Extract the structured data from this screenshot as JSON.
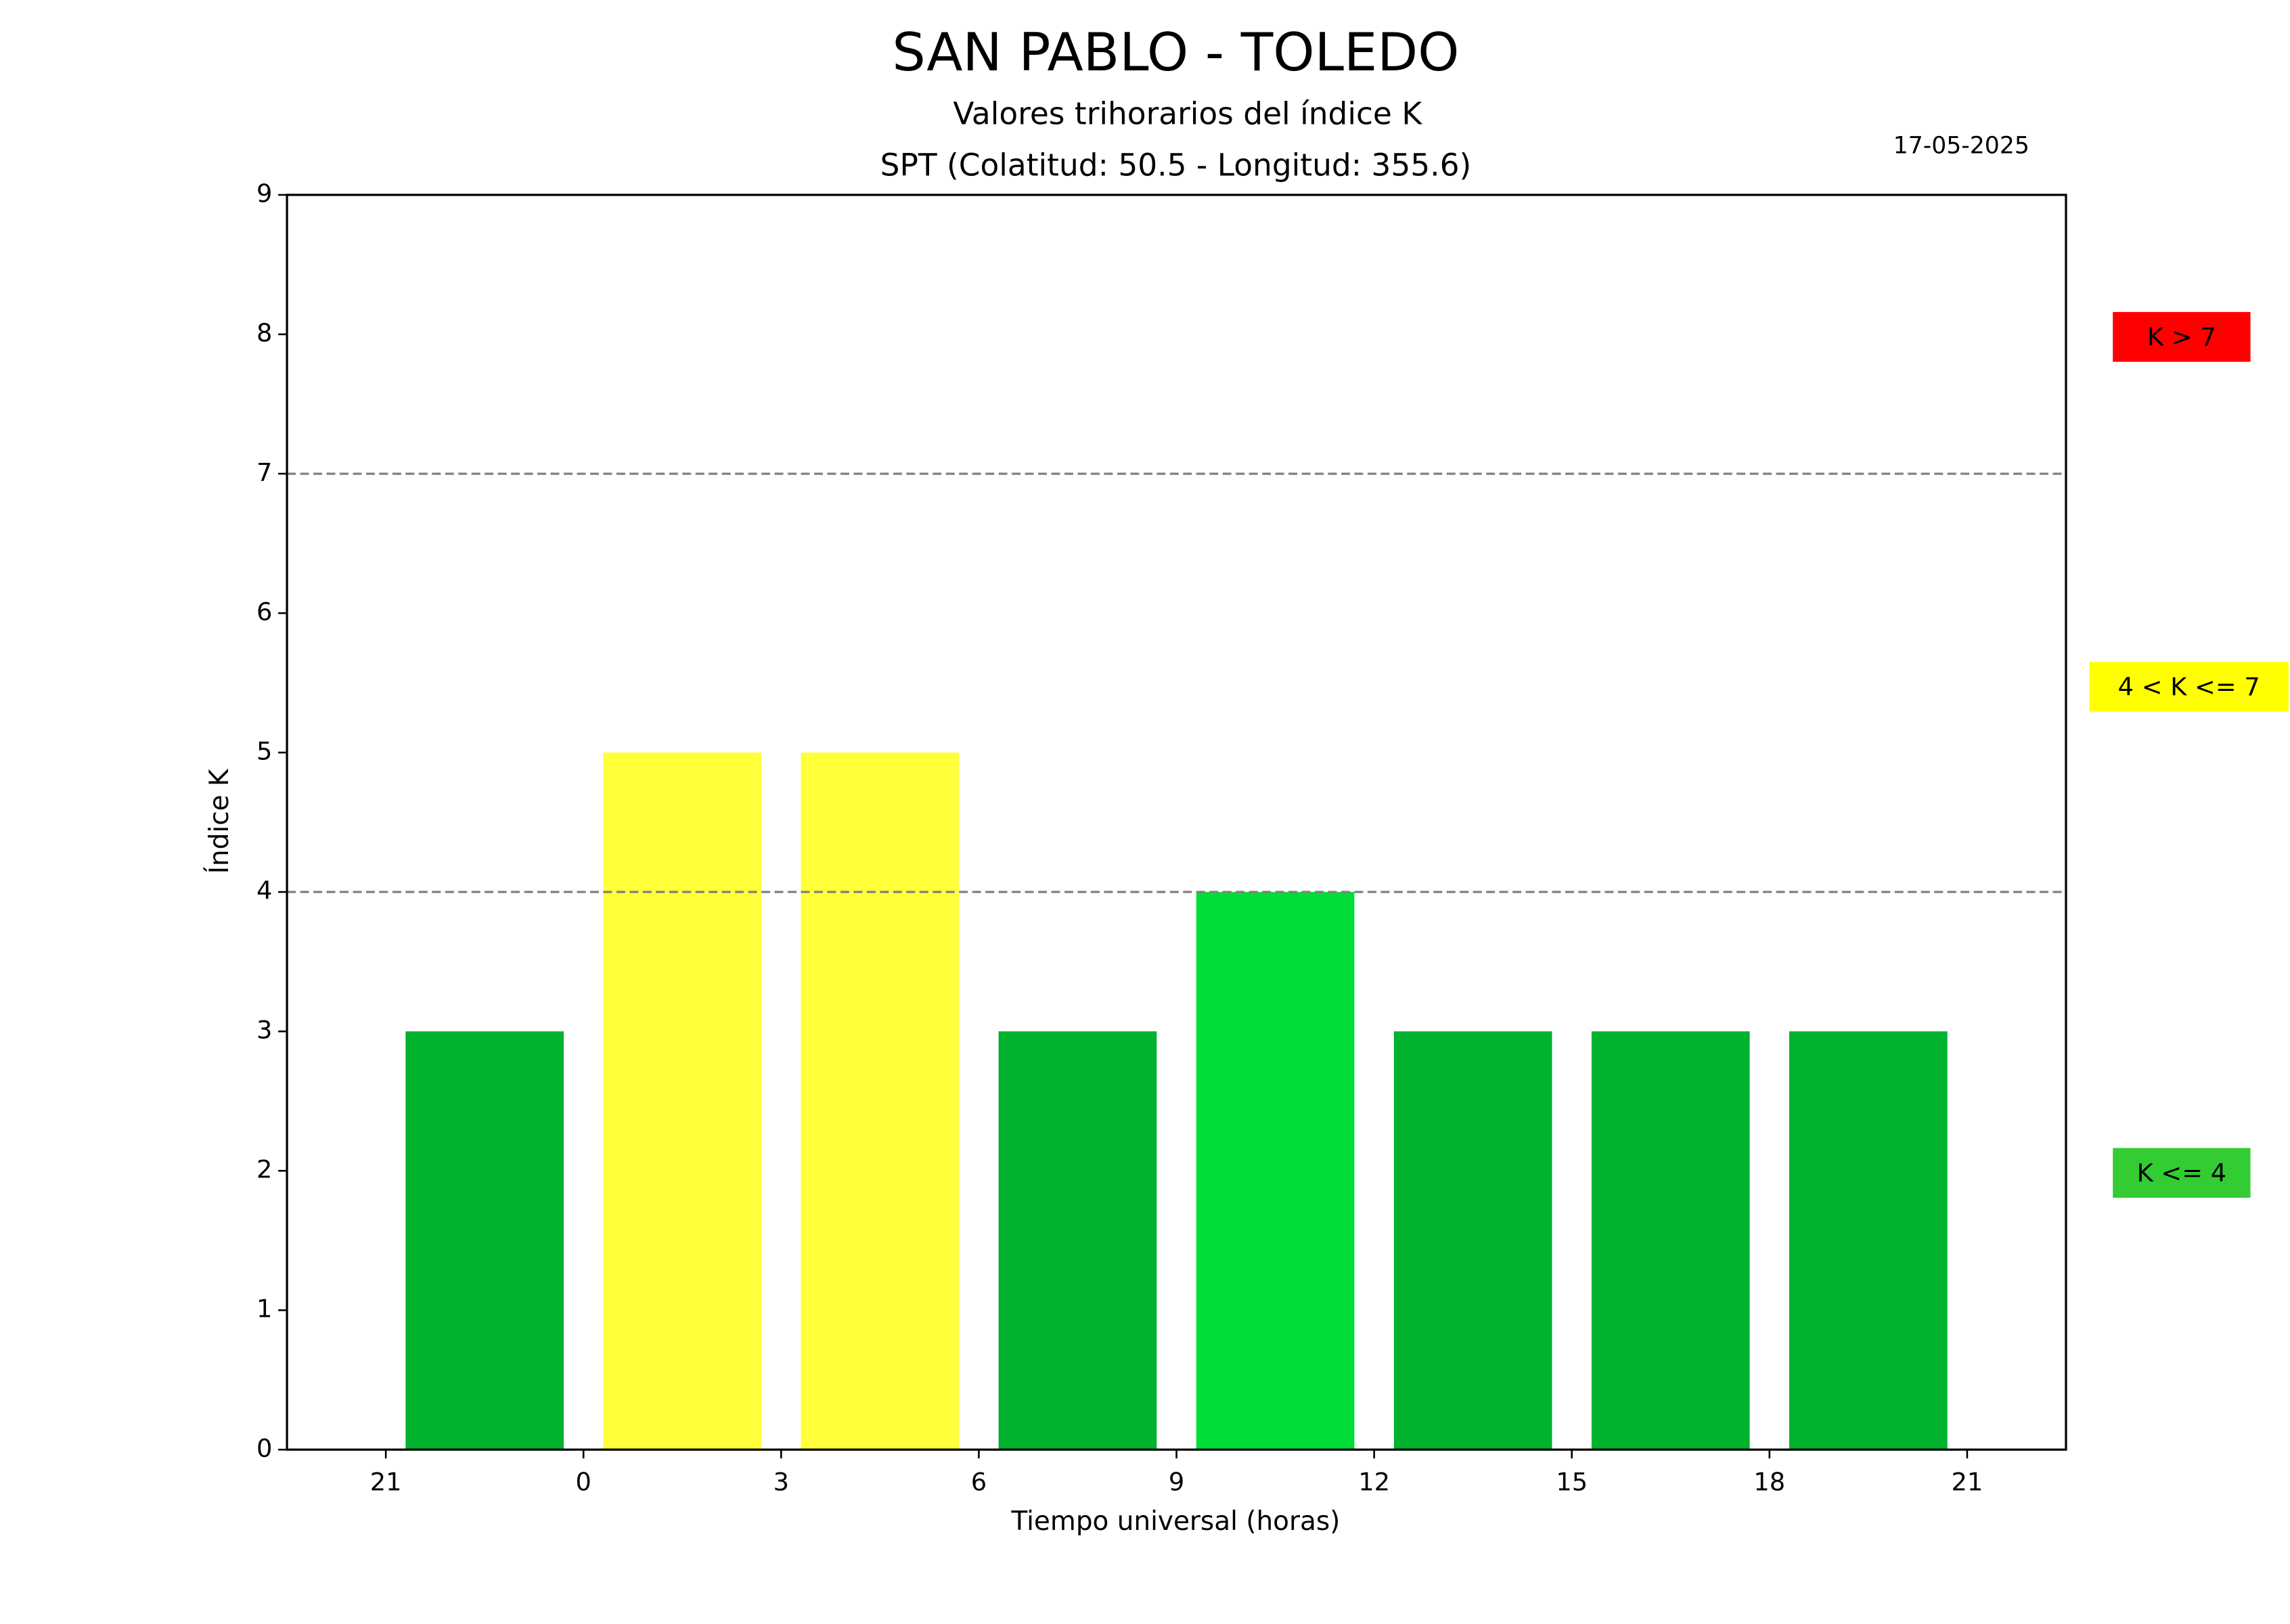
{
  "chart_data": {
    "type": "bar",
    "title": "SAN PABLO - TOLEDO",
    "subtitle": "Valores trihorarios del índice K",
    "subtitle2": "SPT (Colatitud: 50.5 - Longitud: 355.6)",
    "date": "17-05-2025",
    "xlabel": "Tiempo universal (horas)",
    "ylabel": "Índice K",
    "x": [
      -1.5,
      1.5,
      4.5,
      7.5,
      10.5,
      13.5,
      16.5,
      19.5
    ],
    "values": [
      3,
      5,
      5,
      3,
      4,
      3,
      3,
      3
    ],
    "colors": [
      "#00b22e",
      "#ffff3a",
      "#ffff3a",
      "#00b22e",
      "#00dd38",
      "#00b22e",
      "#00b22e",
      "#00b22e"
    ],
    "xlim": [
      -4.5,
      22.5
    ],
    "xticks": [
      {
        "value": -3,
        "label": "21"
      },
      0,
      3,
      6,
      9,
      12,
      15,
      18,
      21
    ],
    "ylim": [
      0,
      9
    ],
    "yticks": [
      0,
      1,
      2,
      3,
      4,
      5,
      6,
      7,
      8,
      9
    ],
    "hlines": [
      7,
      4
    ],
    "legend": [
      {
        "label": "K > 7",
        "color": "#ff0000"
      },
      {
        "label": "4 < K <= 7",
        "color": "#ffff00"
      },
      {
        "label": "K <= 4",
        "color": "#33cc33"
      }
    ]
  }
}
